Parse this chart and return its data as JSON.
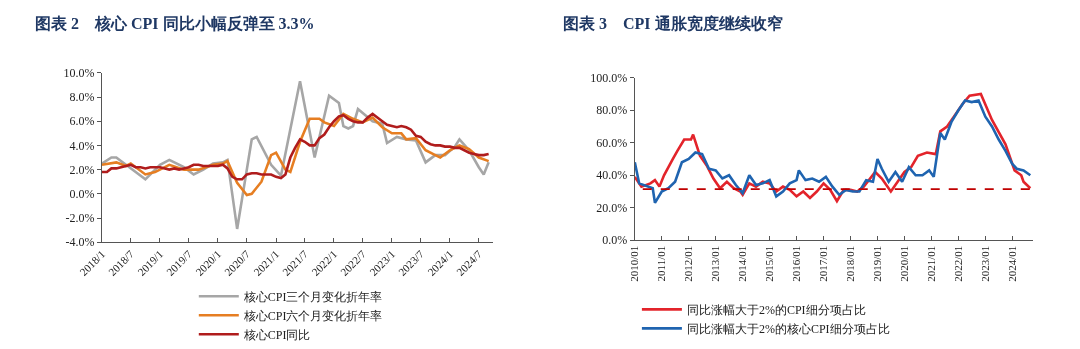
{
  "chart_data": [
    {
      "type": "line",
      "title": "图表 2　核心 CPI 同比小幅反弹至 3.3%",
      "legend": "bottom",
      "xlim": [
        "2018-01",
        "2024-10"
      ],
      "ylim": [
        -4,
        10
      ],
      "xticks": [
        {
          "value": "2018-01",
          "label": "2018/1"
        },
        {
          "value": "2018-07",
          "label": "2018/7"
        },
        {
          "value": "2019-01",
          "label": "2019/1"
        },
        {
          "value": "2019-07",
          "label": "2019/7"
        },
        {
          "value": "2020-01",
          "label": "2020/1"
        },
        {
          "value": "2020-07",
          "label": "2020/7"
        },
        {
          "value": "2021-01",
          "label": "2021/1"
        },
        {
          "value": "2021-07",
          "label": "2021/7"
        },
        {
          "value": "2022-01",
          "label": "2022/1"
        },
        {
          "value": "2022-07",
          "label": "2022/7"
        },
        {
          "value": "2023-01",
          "label": "2023/1"
        },
        {
          "value": "2023-07",
          "label": "2023/7"
        },
        {
          "value": "2024-01",
          "label": "2024/1"
        },
        {
          "value": "2024-07",
          "label": "2024/7"
        }
      ],
      "yticks": [
        {
          "value": -4,
          "label": "-4.0%"
        },
        {
          "value": -2,
          "label": "-2.0%"
        },
        {
          "value": 0,
          "label": "0.0%"
        },
        {
          "value": 2,
          "label": "2.0%"
        },
        {
          "value": 4,
          "label": "4.0%"
        },
        {
          "value": 6,
          "label": "6.0%"
        },
        {
          "value": 8,
          "label": "8.0%"
        },
        {
          "value": 10,
          "label": "10.0%"
        }
      ],
      "series": [
        {
          "name": "核心CPI三个月变化折年率",
          "color": "#a6a6a6",
          "x": [
            "2018-01",
            "2018-03",
            "2018-04",
            "2018-08",
            "2018-10",
            "2019-01",
            "2019-03",
            "2019-06",
            "2019-08",
            "2019-10",
            "2019-12",
            "2020-02",
            "2020-03",
            "2020-05",
            "2020-08",
            "2020-09",
            "2020-12",
            "2021-02",
            "2021-06",
            "2021-09",
            "2021-12",
            "2022-02",
            "2022-03",
            "2022-04",
            "2022-05",
            "2022-06",
            "2022-09",
            "2022-11",
            "2022-12",
            "2023-02",
            "2023-04",
            "2023-06",
            "2023-08",
            "2023-10",
            "2023-12",
            "2024-02",
            "2024-03",
            "2024-05",
            "2024-07",
            "2024-08",
            "2024-09"
          ],
          "values": [
            2.5,
            3.0,
            3.0,
            1.8,
            1.2,
            2.4,
            2.8,
            2.2,
            1.6,
            2.0,
            2.5,
            2.6,
            2.8,
            -2.9,
            4.5,
            4.7,
            2.4,
            1.5,
            9.3,
            3.0,
            8.1,
            7.5,
            5.6,
            5.4,
            5.6,
            7.0,
            6.0,
            5.8,
            4.2,
            4.7,
            4.5,
            4.4,
            2.6,
            3.2,
            3.2,
            3.9,
            4.5,
            3.6,
            2.2,
            1.6,
            2.6
          ]
        },
        {
          "name": "核心CPI六个月变化折年率",
          "color": "#e67e22",
          "x": [
            "2018-01",
            "2018-04",
            "2018-06",
            "2018-07",
            "2018-10",
            "2018-12",
            "2019-03",
            "2019-06",
            "2019-09",
            "2019-12",
            "2020-02",
            "2020-03",
            "2020-05",
            "2020-07",
            "2020-08",
            "2020-10",
            "2020-12",
            "2021-01",
            "2021-03",
            "2021-04",
            "2021-06",
            "2021-08",
            "2021-10",
            "2021-11",
            "2022-01",
            "2022-03",
            "2022-05",
            "2022-07",
            "2022-09",
            "2022-11",
            "2023-01",
            "2023-03",
            "2023-04",
            "2023-06",
            "2023-08",
            "2023-10",
            "2023-11",
            "2024-01",
            "2024-03",
            "2024-05",
            "2024-07",
            "2024-09"
          ],
          "values": [
            2.4,
            2.6,
            2.3,
            2.5,
            1.6,
            1.8,
            2.4,
            2.0,
            2.0,
            2.4,
            2.5,
            2.7,
            0.9,
            -0.1,
            0.0,
            1.0,
            3.2,
            3.4,
            2.0,
            1.8,
            4.3,
            6.2,
            6.2,
            5.9,
            5.6,
            6.6,
            6.2,
            5.9,
            6.3,
            5.5,
            5.0,
            5.0,
            4.5,
            4.6,
            3.6,
            3.2,
            3.0,
            3.6,
            4.0,
            3.7,
            3.0,
            2.7
          ]
        },
        {
          "name": "核心CPI同比",
          "color": "#b01c1c",
          "x": [
            "2018-01",
            "2018-02",
            "2018-03",
            "2018-04",
            "2018-05",
            "2018-06",
            "2018-07",
            "2018-08",
            "2018-09",
            "2018-10",
            "2018-11",
            "2018-12",
            "2019-01",
            "2019-02",
            "2019-03",
            "2019-04",
            "2019-05",
            "2019-06",
            "2019-07",
            "2019-08",
            "2019-09",
            "2019-10",
            "2019-11",
            "2019-12",
            "2020-01",
            "2020-02",
            "2020-03",
            "2020-04",
            "2020-05",
            "2020-06",
            "2020-07",
            "2020-08",
            "2020-09",
            "2020-10",
            "2020-11",
            "2020-12",
            "2021-01",
            "2021-02",
            "2021-03",
            "2021-04",
            "2021-05",
            "2021-06",
            "2021-07",
            "2021-08",
            "2021-09",
            "2021-10",
            "2021-11",
            "2021-12",
            "2022-01",
            "2022-02",
            "2022-03",
            "2022-04",
            "2022-05",
            "2022-06",
            "2022-07",
            "2022-08",
            "2022-09",
            "2022-10",
            "2022-11",
            "2022-12",
            "2023-01",
            "2023-02",
            "2023-03",
            "2023-04",
            "2023-05",
            "2023-06",
            "2023-07",
            "2023-08",
            "2023-09",
            "2023-10",
            "2023-11",
            "2023-12",
            "2024-01",
            "2024-02",
            "2024-03",
            "2024-04",
            "2024-05",
            "2024-06",
            "2024-07",
            "2024-08",
            "2024-09"
          ],
          "values": [
            1.8,
            1.8,
            2.1,
            2.1,
            2.2,
            2.3,
            2.4,
            2.2,
            2.2,
            2.1,
            2.2,
            2.2,
            2.2,
            2.1,
            2.0,
            2.1,
            2.0,
            2.1,
            2.2,
            2.4,
            2.4,
            2.3,
            2.3,
            2.3,
            2.3,
            2.4,
            2.1,
            1.4,
            1.2,
            1.2,
            1.6,
            1.7,
            1.7,
            1.6,
            1.6,
            1.6,
            1.4,
            1.3,
            1.6,
            3.0,
            3.8,
            4.5,
            4.3,
            4.0,
            4.0,
            4.6,
            4.9,
            5.5,
            6.0,
            6.4,
            6.5,
            6.2,
            6.0,
            5.9,
            5.9,
            6.3,
            6.6,
            6.3,
            6.0,
            5.7,
            5.6,
            5.5,
            5.6,
            5.5,
            5.3,
            4.8,
            4.7,
            4.3,
            4.1,
            4.0,
            4.0,
            3.9,
            3.9,
            3.8,
            3.8,
            3.6,
            3.4,
            3.3,
            3.2,
            3.2,
            3.3
          ]
        }
      ]
    },
    {
      "type": "line",
      "title": "图表 3　CPI 通胀宽度继续收窄",
      "legend": "bottom",
      "xlim": [
        "2010-01",
        "2024-10"
      ],
      "ylim": [
        0,
        100
      ],
      "xticks": [
        {
          "value": "2010-01",
          "label": "2010/01"
        },
        {
          "value": "2011-01",
          "label": "2011/01"
        },
        {
          "value": "2012-01",
          "label": "2012/01"
        },
        {
          "value": "2013-01",
          "label": "2013/01"
        },
        {
          "value": "2014-01",
          "label": "2014/01"
        },
        {
          "value": "2015-01",
          "label": "2015/01"
        },
        {
          "value": "2016-01",
          "label": "2016/01"
        },
        {
          "value": "2017-01",
          "label": "2017/01"
        },
        {
          "value": "2018-01",
          "label": "2018/01"
        },
        {
          "value": "2019-01",
          "label": "2019/01"
        },
        {
          "value": "2020-01",
          "label": "2020/01"
        },
        {
          "value": "2021-01",
          "label": "2021/01"
        },
        {
          "value": "2022-01",
          "label": "2022/01"
        },
        {
          "value": "2023-01",
          "label": "2023/01"
        },
        {
          "value": "2024-01",
          "label": "2024/01"
        }
      ],
      "yticks": [
        {
          "value": 0,
          "label": "0.0%"
        },
        {
          "value": 20,
          "label": "20.0%"
        },
        {
          "value": 40,
          "label": "40.0%"
        },
        {
          "value": 60,
          "label": "60.0%"
        },
        {
          "value": 80,
          "label": "80.0%"
        },
        {
          "value": 100,
          "label": "100.0%"
        }
      ],
      "ref_lines": [
        {
          "axis": "y",
          "value": 31.5,
          "color": "#c00000",
          "line_style": "dashed"
        }
      ],
      "series": [
        {
          "name": "同比涨幅大于2%的CPI细分项占比",
          "color": "#e3242b",
          "x": [
            "2010-01",
            "2010-04",
            "2010-08",
            "2010-10",
            "2010-12",
            "2011-02",
            "2011-06",
            "2011-08",
            "2011-11",
            "2012-02",
            "2012-03",
            "2012-06",
            "2012-09",
            "2012-12",
            "2013-03",
            "2013-06",
            "2013-09",
            "2013-12",
            "2014-01",
            "2014-04",
            "2014-07",
            "2014-10",
            "2015-01",
            "2015-04",
            "2015-07",
            "2015-10",
            "2016-01",
            "2016-04",
            "2016-07",
            "2016-10",
            "2017-01",
            "2017-04",
            "2017-07",
            "2017-10",
            "2018-01",
            "2018-04",
            "2018-07",
            "2018-12",
            "2019-03",
            "2019-07",
            "2019-10",
            "2020-01",
            "2020-04",
            "2020-07",
            "2020-11",
            "2021-03",
            "2021-05",
            "2021-08",
            "2021-12",
            "2022-03",
            "2022-06",
            "2022-11",
            "2023-04",
            "2023-10",
            "2024-02",
            "2024-05",
            "2024-06",
            "2024-09"
          ],
          "values": [
            39,
            33,
            35,
            37,
            33,
            40,
            50,
            55,
            62,
            62,
            65,
            52,
            46,
            38,
            32,
            36,
            32,
            30,
            28,
            35,
            33,
            36,
            35,
            30,
            33,
            31,
            27,
            30,
            26,
            30,
            35,
            31,
            24,
            31,
            31,
            30,
            33,
            42,
            38,
            30,
            36,
            42,
            45,
            52,
            54,
            53,
            67,
            70,
            78,
            84,
            89,
            90,
            74,
            59,
            43,
            40,
            36,
            32
          ]
        },
        {
          "name": "同比涨幅大于2%的核心CPI细分项占比",
          "color": "#1f64b0",
          "x": [
            "2010-01",
            "2010-03",
            "2010-09",
            "2010-10",
            "2011-01",
            "2011-04",
            "2011-07",
            "2011-10",
            "2012-01",
            "2012-04",
            "2012-07",
            "2012-10",
            "2013-01",
            "2013-04",
            "2013-07",
            "2013-10",
            "2014-01",
            "2014-04",
            "2014-07",
            "2014-10",
            "2015-01",
            "2015-04",
            "2015-07",
            "2015-10",
            "2016-01",
            "2016-02",
            "2016-05",
            "2016-08",
            "2016-11",
            "2017-02",
            "2017-05",
            "2017-08",
            "2017-11",
            "2018-02",
            "2018-05",
            "2018-08",
            "2018-11",
            "2019-01",
            "2019-03",
            "2019-06",
            "2019-09",
            "2019-12",
            "2020-03",
            "2020-06",
            "2020-09",
            "2020-12",
            "2021-02",
            "2021-05",
            "2021-07",
            "2021-10",
            "2022-01",
            "2022-04",
            "2022-07",
            "2022-10",
            "2023-01",
            "2023-04",
            "2023-07",
            "2023-10",
            "2024-01",
            "2024-03",
            "2024-06",
            "2024-09"
          ],
          "values": [
            48,
            35,
            32,
            23,
            30,
            32,
            36,
            48,
            50,
            54,
            53,
            44,
            43,
            38,
            40,
            34,
            29,
            40,
            34,
            35,
            37,
            27,
            30,
            35,
            37,
            43,
            37,
            38,
            36,
            39,
            33,
            28,
            31,
            30,
            30,
            37,
            36,
            50,
            44,
            36,
            42,
            36,
            45,
            40,
            40,
            43,
            39,
            66,
            62,
            73,
            80,
            86,
            85,
            86,
            76,
            70,
            62,
            55,
            47,
            44,
            43,
            40
          ]
        }
      ]
    }
  ]
}
